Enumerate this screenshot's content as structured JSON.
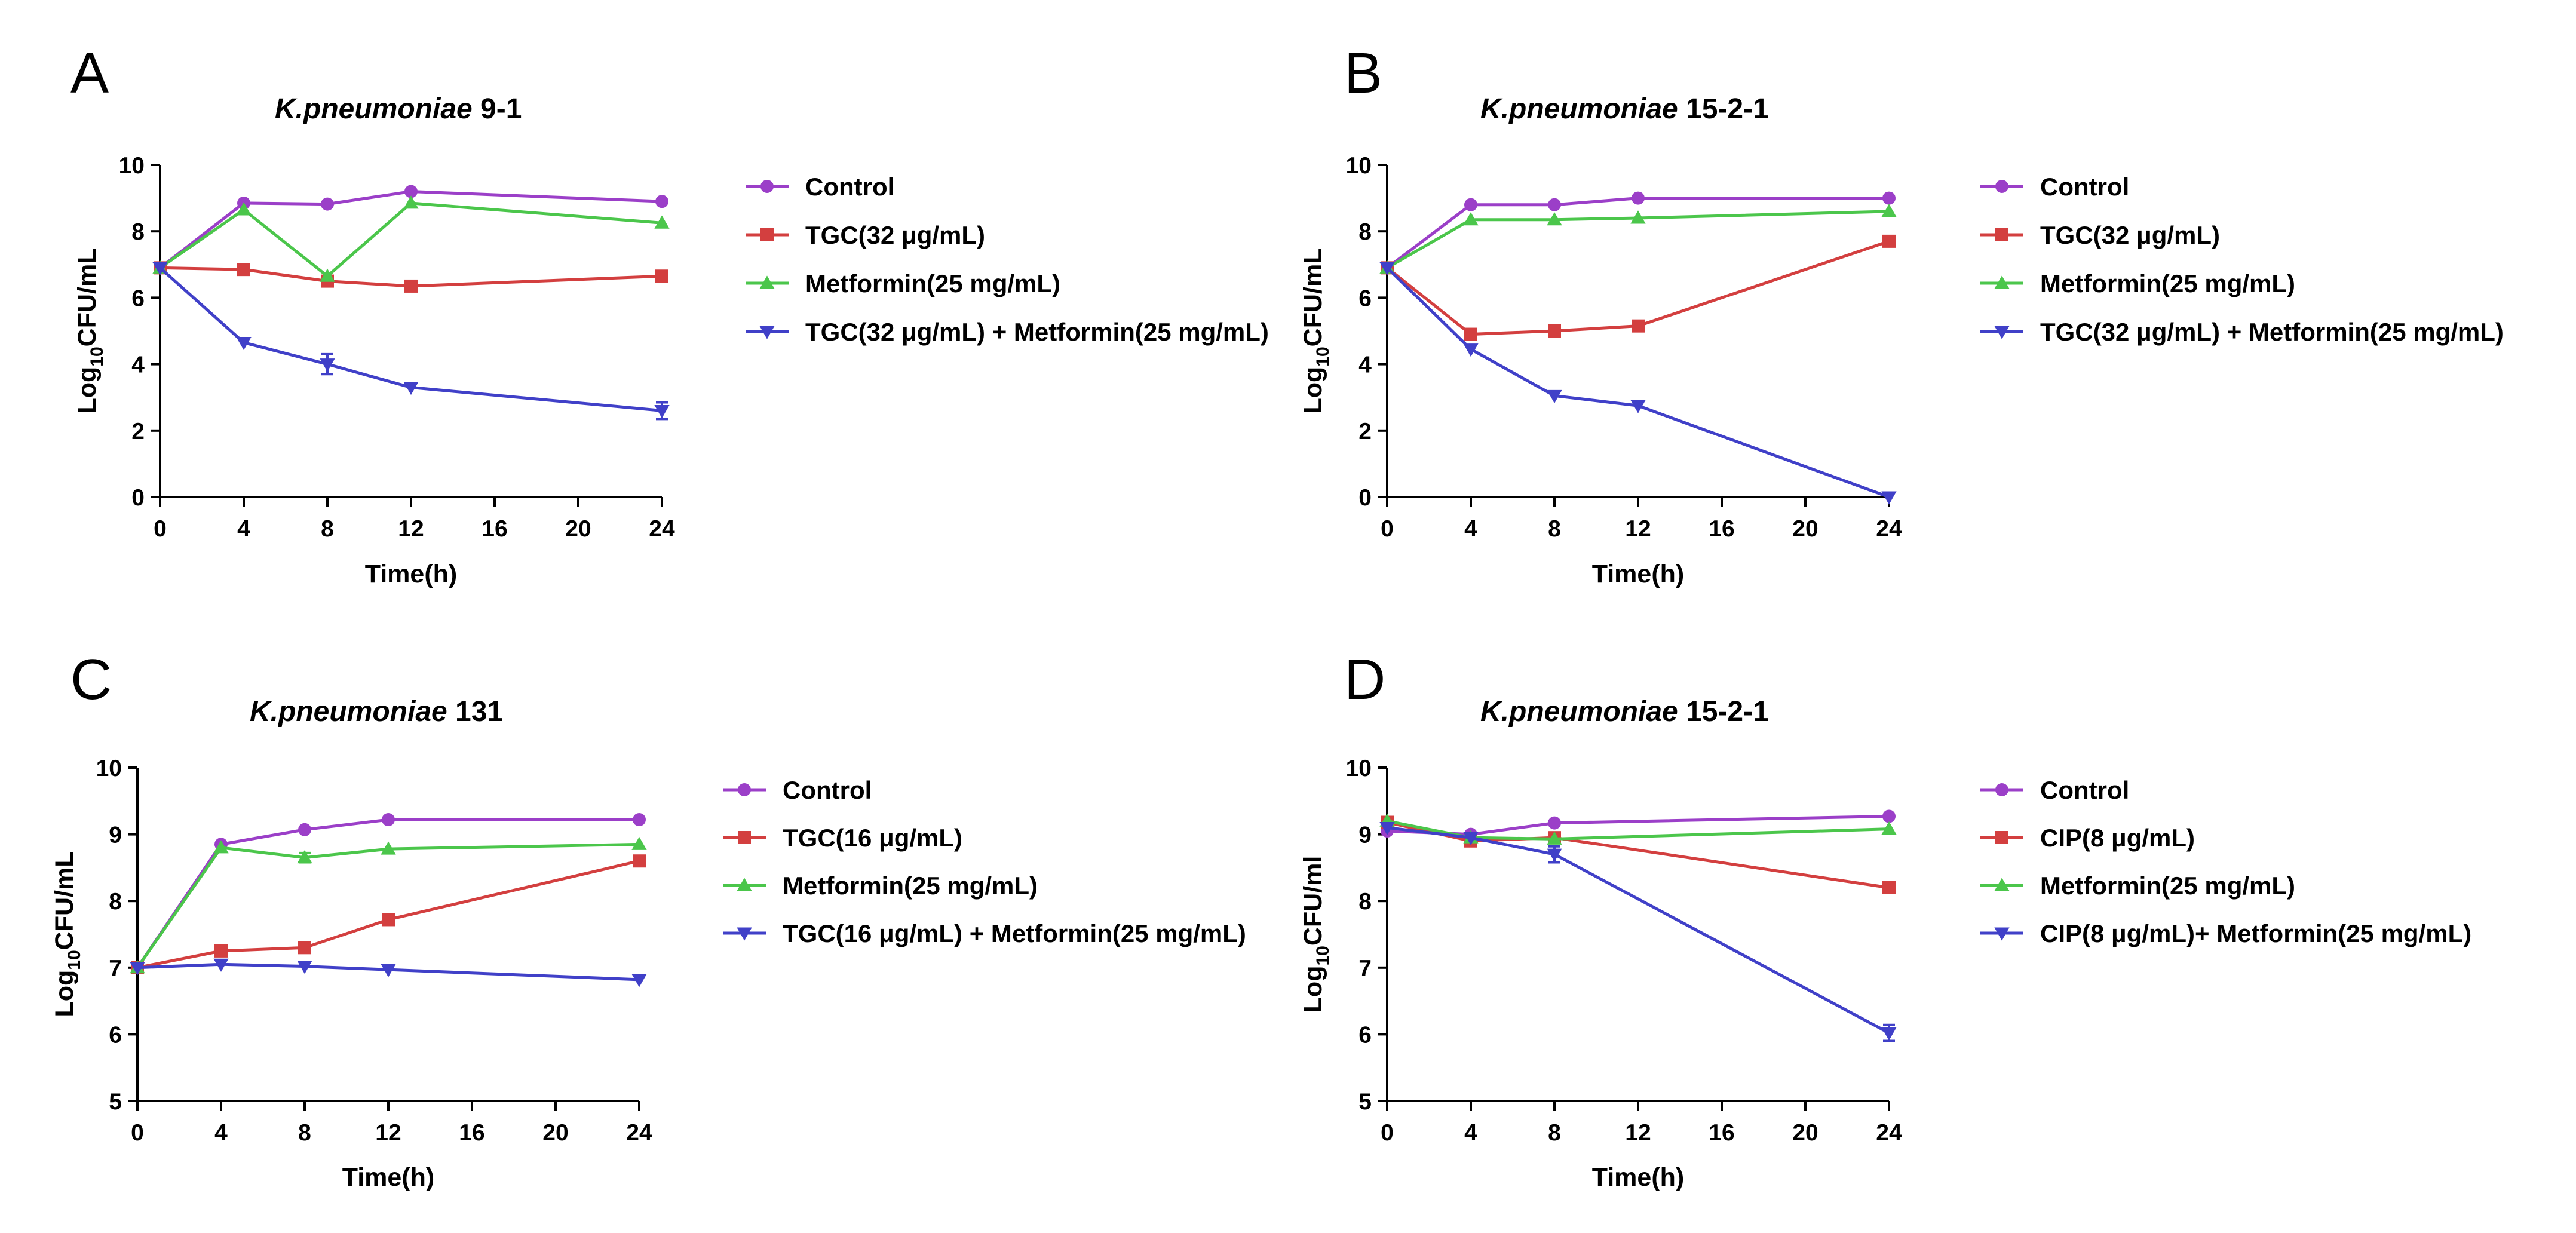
{
  "chart_data": [
    {
      "panel": "A",
      "type": "line",
      "title": {
        "italic": "K.pneumoniae",
        "rest": " 9-1"
      },
      "xlabel": "Time(h)",
      "ylabel": {
        "base": "Log",
        "sub": "10",
        "rest": "CFU/mL"
      },
      "xlim": [
        0,
        24
      ],
      "ylim": [
        0,
        10
      ],
      "xticks": [
        0,
        4,
        8,
        12,
        16,
        20,
        24
      ],
      "yticks": [
        0,
        2,
        4,
        6,
        8,
        10
      ],
      "x": [
        0,
        4,
        8,
        12,
        24
      ],
      "series": [
        {
          "name": "Control",
          "color": "#9B3FC8",
          "marker": "circle",
          "values": [
            6.9,
            8.85,
            8.82,
            9.2,
            8.9
          ],
          "errors": [
            0,
            0,
            0,
            0,
            0
          ]
        },
        {
          "name": "TGC(32 μg/mL)",
          "color": "#D33F3F",
          "marker": "square",
          "values": [
            6.9,
            6.85,
            6.5,
            6.35,
            6.65
          ],
          "errors": [
            0,
            0,
            0,
            0,
            0
          ]
        },
        {
          "name": "Metformin(25 mg/mL)",
          "color": "#4BC64B",
          "marker": "triangle-up",
          "values": [
            6.9,
            8.65,
            6.65,
            8.85,
            8.25
          ],
          "errors": [
            0,
            0,
            0,
            0,
            0
          ]
        },
        {
          "name": "TGC(32 μg/mL) + Metformin(25 mg/mL)",
          "color": "#4040C8",
          "marker": "triangle-down",
          "values": [
            6.9,
            4.65,
            4.0,
            3.3,
            2.6
          ],
          "errors": [
            0,
            0,
            0.3,
            0,
            0.25
          ]
        }
      ]
    },
    {
      "panel": "B",
      "type": "line",
      "title": {
        "italic": "K.pneumoniae",
        "rest": " 15-2-1"
      },
      "xlabel": "Time(h)",
      "ylabel": {
        "base": "Log",
        "sub": "10",
        "rest": "CFU/mL"
      },
      "xlim": [
        0,
        24
      ],
      "ylim": [
        0,
        10
      ],
      "xticks": [
        0,
        4,
        8,
        12,
        16,
        20,
        24
      ],
      "yticks": [
        0,
        2,
        4,
        6,
        8,
        10
      ],
      "x": [
        0,
        4,
        8,
        12,
        24
      ],
      "series": [
        {
          "name": "Control",
          "color": "#9B3FC8",
          "marker": "circle",
          "values": [
            6.9,
            8.8,
            8.8,
            9.0,
            9.0
          ],
          "errors": [
            0,
            0,
            0,
            0,
            0
          ]
        },
        {
          "name": "TGC(32 μg/mL)",
          "color": "#D33F3F",
          "marker": "square",
          "values": [
            6.9,
            4.9,
            5.0,
            5.15,
            7.7
          ],
          "errors": [
            0,
            0,
            0,
            0,
            0
          ]
        },
        {
          "name": "Metformin(25 mg/mL)",
          "color": "#4BC64B",
          "marker": "triangle-up",
          "values": [
            6.9,
            8.35,
            8.35,
            8.4,
            8.6
          ],
          "errors": [
            0,
            0,
            0,
            0,
            0
          ]
        },
        {
          "name": "TGC(32 μg/mL) + Metformin(25 mg/mL)",
          "color": "#4040C8",
          "marker": "triangle-down",
          "values": [
            6.9,
            4.45,
            3.05,
            2.75,
            0.0
          ],
          "errors": [
            0,
            0,
            0,
            0,
            0
          ]
        }
      ]
    },
    {
      "panel": "C",
      "type": "line",
      "title": {
        "italic": "K.pneumoniae",
        "rest": " 131"
      },
      "xlabel": "Time(h)",
      "ylabel": {
        "base": "Log",
        "sub": "10",
        "rest": "CFU/mL"
      },
      "xlim": [
        0,
        24
      ],
      "ylim": [
        5,
        10
      ],
      "xticks": [
        0,
        4,
        8,
        12,
        16,
        20,
        24
      ],
      "yticks": [
        5,
        6,
        7,
        8,
        9,
        10
      ],
      "x": [
        0,
        4,
        8,
        12,
        24
      ],
      "series": [
        {
          "name": "Control",
          "color": "#9B3FC8",
          "marker": "circle",
          "values": [
            7.0,
            8.85,
            9.07,
            9.22,
            9.22
          ],
          "errors": [
            0,
            0,
            0,
            0,
            0
          ]
        },
        {
          "name": "TGC(16 μg/mL)",
          "color": "#D33F3F",
          "marker": "square",
          "values": [
            7.0,
            7.25,
            7.3,
            7.72,
            8.6
          ],
          "errors": [
            0,
            0,
            0,
            0,
            0
          ]
        },
        {
          "name": "Metformin(25 mg/mL)",
          "color": "#4BC64B",
          "marker": "triangle-up",
          "values": [
            7.0,
            8.8,
            8.65,
            8.78,
            8.85
          ],
          "errors": [
            0,
            0,
            0.07,
            0,
            0
          ]
        },
        {
          "name": "TGC(16 μg/mL) + Metformin(25 mg/mL)",
          "color": "#4040C8",
          "marker": "triangle-down",
          "values": [
            7.0,
            7.05,
            7.02,
            6.97,
            6.82
          ],
          "errors": [
            0,
            0,
            0,
            0,
            0
          ]
        }
      ]
    },
    {
      "panel": "D",
      "type": "line",
      "title": {
        "italic": "K.pneumoniae",
        "rest": " 15-2-1"
      },
      "xlabel": "Time(h)",
      "ylabel": {
        "base": "Log",
        "sub": "10",
        "rest": "CFU/ml"
      },
      "xlim": [
        0,
        24
      ],
      "ylim": [
        5,
        10
      ],
      "xticks": [
        0,
        4,
        8,
        12,
        16,
        20,
        24
      ],
      "yticks": [
        5,
        6,
        7,
        8,
        9,
        10
      ],
      "x": [
        0,
        4,
        8,
        24
      ],
      "series": [
        {
          "name": "Control",
          "color": "#9B3FC8",
          "marker": "circle",
          "values": [
            9.05,
            9.0,
            9.17,
            9.27
          ],
          "errors": [
            0,
            0,
            0,
            0
          ]
        },
        {
          "name": "CIP(8 μg/mL)",
          "color": "#D33F3F",
          "marker": "square",
          "values": [
            9.18,
            8.9,
            8.95,
            8.2
          ],
          "errors": [
            0,
            0,
            0,
            0
          ]
        },
        {
          "name": "Metformin(25 mg/mL)",
          "color": "#4BC64B",
          "marker": "triangle-up",
          "values": [
            9.2,
            8.95,
            8.93,
            9.08
          ],
          "errors": [
            0,
            0,
            0,
            0
          ]
        },
        {
          "name": "CIP(8 μg/mL)+ Metformin(25 mg/mL)",
          "color": "#4040C8",
          "marker": "triangle-down",
          "values": [
            9.1,
            8.95,
            8.7,
            6.02
          ],
          "errors": [
            0,
            0,
            0.12,
            0.12
          ]
        }
      ]
    }
  ]
}
